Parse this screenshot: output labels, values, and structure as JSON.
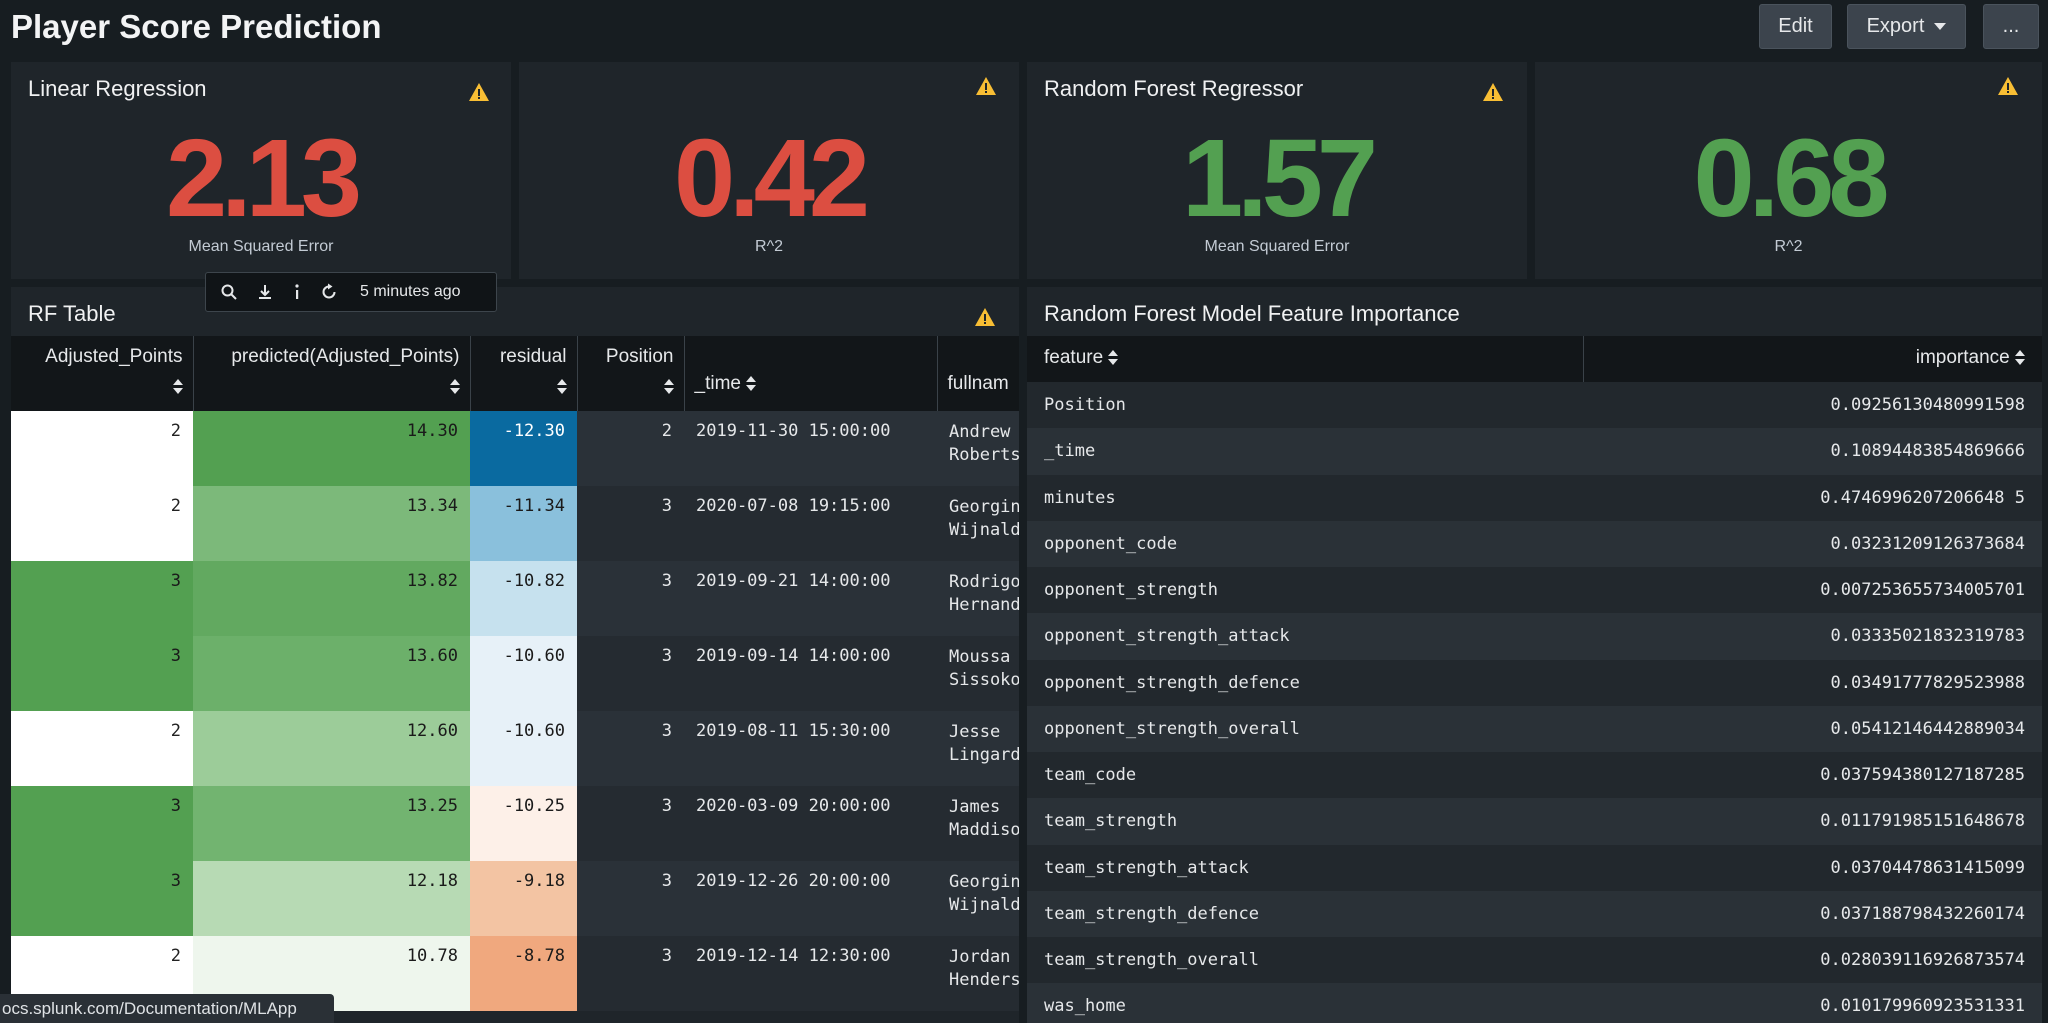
{
  "header": {
    "title": "Player Score Prediction",
    "edit_label": "Edit",
    "export_label": "Export",
    "more_label": "..."
  },
  "kpis": [
    {
      "title": "Linear Regression",
      "value": "2.13",
      "label": "Mean Squared Error",
      "color": "#dc4e41"
    },
    {
      "title": "",
      "value": "0.42",
      "label": "R^2",
      "color": "#dc4e41"
    },
    {
      "title": "Random Forest Regressor",
      "value": "1.57",
      "label": "Mean Squared Error",
      "color": "#53a051"
    },
    {
      "title": "",
      "value": "0.68",
      "label": "R^2",
      "color": "#53a051"
    }
  ],
  "toolbar": {
    "icons": [
      "search-icon",
      "download-icon",
      "info-icon",
      "refresh-icon"
    ],
    "updated": "5 minutes ago"
  },
  "rf_table": {
    "title": "RF Table",
    "columns": [
      "Adjusted_Points",
      "predicted(Adjusted_Points)",
      "residual",
      "Position",
      "_time",
      "fullnam"
    ],
    "rows": [
      {
        "adjusted": "2",
        "predicted": "14.30",
        "residual": "-12.30",
        "position": "2",
        "time": "2019-11-30 15:00:00",
        "name": "Andrew\nRoberts"
      },
      {
        "adjusted": "2",
        "predicted": "13.34",
        "residual": "-11.34",
        "position": "3",
        "time": "2020-07-08 19:15:00",
        "name": "Georgin\nWijnald"
      },
      {
        "adjusted": "3",
        "predicted": "13.82",
        "residual": "-10.82",
        "position": "3",
        "time": "2019-09-21 14:00:00",
        "name": "Rodrigo\nHernand"
      },
      {
        "adjusted": "3",
        "predicted": "13.60",
        "residual": "-10.60",
        "position": "3",
        "time": "2019-09-14 14:00:00",
        "name": "Moussa\nSissoko"
      },
      {
        "adjusted": "2",
        "predicted": "12.60",
        "residual": "-10.60",
        "position": "3",
        "time": "2019-08-11 15:30:00",
        "name": "Jesse\nLingard"
      },
      {
        "adjusted": "3",
        "predicted": "13.25",
        "residual": "-10.25",
        "position": "3",
        "time": "2020-03-09 20:00:00",
        "name": "James\nMaddiso"
      },
      {
        "adjusted": "3",
        "predicted": "12.18",
        "residual": "-9.18",
        "position": "3",
        "time": "2019-12-26 20:00:00",
        "name": "Georgin\nWijnald"
      },
      {
        "adjusted": "2",
        "predicted": "10.78",
        "residual": "-8.78",
        "position": "3",
        "time": "2019-12-14 12:30:00",
        "name": "Jordan\nHenders"
      }
    ],
    "cell_colors": {
      "adjusted": [
        "#ffffff",
        "#ffffff",
        "#53a051",
        "#53a051",
        "#ffffff",
        "#53a051",
        "#53a051",
        "#ffffff"
      ],
      "predicted": [
        "#53a051",
        "#7cb97a",
        "#62a960",
        "#6cb06a",
        "#9ccc99",
        "#72b470",
        "#b7dab4",
        "#eef6ed"
      ],
      "residual": [
        "#0a6aa0",
        "#8ac0dc",
        "#c6e1ee",
        "#e7f1f8",
        "#e7f1f8",
        "#fdf0e8",
        "#f3c4a3",
        "#f0a87e"
      ]
    },
    "text_colors": {
      "adjusted": [
        "#222222",
        "#222222",
        "#1a1a1a",
        "#1a1a1a",
        "#222222",
        "#1a1a1a",
        "#1a1a1a",
        "#222222"
      ],
      "predicted": [
        "#1a1a1a",
        "#1a1a1a",
        "#1a1a1a",
        "#1a1a1a",
        "#1a1a1a",
        "#1a1a1a",
        "#1a1a1a",
        "#1a1a1a"
      ],
      "residual": [
        "#ffffff",
        "#1a1a1a",
        "#1a1a1a",
        "#1a1a1a",
        "#1a1a1a",
        "#1a1a1a",
        "#1a1a1a",
        "#1a1a1a"
      ]
    }
  },
  "fi_table": {
    "title": "Random Forest Model Feature Importance",
    "columns": [
      "feature",
      "importance"
    ],
    "rows": [
      {
        "feature": "Position",
        "importance": "0.09256130480991598"
      },
      {
        "feature": "_time",
        "importance": "0.10894483854869666"
      },
      {
        "feature": "minutes",
        "importance": "0.4746996207206648 5"
      },
      {
        "feature": "opponent_code",
        "importance": "0.03231209126373684"
      },
      {
        "feature": "opponent_strength",
        "importance": "0.007253655734005701"
      },
      {
        "feature": "opponent_strength_attack",
        "importance": "0.03335021832319783"
      },
      {
        "feature": "opponent_strength_defence",
        "importance": "0.03491777829523988"
      },
      {
        "feature": "opponent_strength_overall",
        "importance": "0.05412146442889034"
      },
      {
        "feature": "team_code",
        "importance": "0.037594380127187285"
      },
      {
        "feature": "team_strength",
        "importance": "0.011791985151648678"
      },
      {
        "feature": "team_strength_attack",
        "importance": "0.03704478631415099"
      },
      {
        "feature": "team_strength_defence",
        "importance": "0.037188798432260174"
      },
      {
        "feature": "team_strength_overall",
        "importance": "0.028039116926873574"
      },
      {
        "feature": "was_home",
        "importance": "0.010179960923531331"
      }
    ]
  },
  "status_bar": {
    "text": "ocs.splunk.com/Documentation/MLApp"
  },
  "colors": {
    "warning": "#f8be34",
    "background": "#171d21",
    "panel": "#1f252a"
  }
}
